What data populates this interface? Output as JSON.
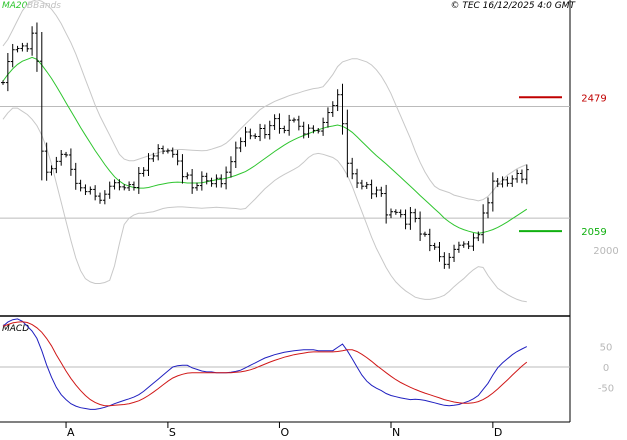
{
  "header": {
    "indicators": [
      "MA20",
      "BBands"
    ],
    "copyright": "© TEC 16/12/2025 4:0 GMT"
  },
  "macd_label": "MACD",
  "colors": {
    "price": "#000000",
    "ma": "#2ec52e",
    "bands": "#c8c8c8",
    "resistance": "#c00000",
    "support": "#10b010",
    "macd": "#2020c0",
    "signal": "#d01818",
    "grid": "#bbbbbb",
    "axis_text": "#b8b8b8"
  },
  "chart_data": [
    {
      "type": "ohlc",
      "price_ticks": [
        {
          "value": 2000,
          "label": "2000"
        }
      ],
      "reference_lines": [
        {
          "value": 2100,
          "label": "",
          "style": "grid"
        },
        {
          "value": 2450,
          "label": "",
          "style": "grid"
        },
        {
          "value": 2479,
          "label": "2479",
          "style": "resistance"
        },
        {
          "value": 2059,
          "label": "2059",
          "style": "support"
        }
      ],
      "x_labels": [
        {
          "index": 13,
          "label": "A"
        },
        {
          "index": 34,
          "label": "S"
        },
        {
          "index": 57,
          "label": "O"
        },
        {
          "index": 80,
          "label": "N"
        },
        {
          "index": 101,
          "label": "D"
        }
      ],
      "close": [
        2525,
        2591,
        2628,
        2632,
        2640,
        2631,
        2680,
        2592,
        2310,
        2244,
        2255,
        2278,
        2300,
        2298,
        2253,
        2209,
        2195,
        2183,
        2190,
        2169,
        2156,
        2175,
        2200,
        2211,
        2198,
        2195,
        2205,
        2196,
        2240,
        2250,
        2286,
        2295,
        2318,
        2310,
        2311,
        2300,
        2279,
        2230,
        2235,
        2195,
        2202,
        2231,
        2217,
        2208,
        2225,
        2208,
        2244,
        2277,
        2320,
        2340,
        2370,
        2358,
        2356,
        2381,
        2362,
        2390,
        2412,
        2381,
        2375,
        2407,
        2408,
        2388,
        2364,
        2382,
        2375,
        2373,
        2400,
        2431,
        2453,
        2487,
        2396,
        2272,
        2239,
        2210,
        2200,
        2205,
        2176,
        2188,
        2177,
        2110,
        2120,
        2118,
        2111,
        2081,
        2117,
        2099,
        2050,
        2049,
        2014,
        2009,
        1979,
        1955,
        1977,
        2002,
        2015,
        2019,
        2012,
        2038,
        2048,
        2116,
        2148,
        2216,
        2207,
        2220,
        2209,
        2223,
        2240,
        2222,
        2252
      ],
      "ma20": [
        2530,
        2550,
        2568,
        2582,
        2592,
        2598,
        2604,
        2598,
        2580,
        2560,
        2538,
        2514,
        2488,
        2462,
        2436,
        2410,
        2384,
        2360,
        2336,
        2312,
        2290,
        2268,
        2248,
        2230,
        2216,
        2206,
        2200,
        2196,
        2194,
        2194,
        2196,
        2200,
        2204,
        2207,
        2210,
        2212,
        2213,
        2212,
        2210,
        2210,
        2210,
        2211,
        2214,
        2217,
        2220,
        2222,
        2225,
        2229,
        2234,
        2240,
        2246,
        2255,
        2265,
        2276,
        2287,
        2298,
        2309,
        2319,
        2329,
        2338,
        2346,
        2353,
        2359,
        2365,
        2371,
        2377,
        2382,
        2386,
        2389,
        2392,
        2388,
        2380,
        2369,
        2355,
        2340,
        2325,
        2310,
        2296,
        2283,
        2270,
        2256,
        2242,
        2228,
        2214,
        2200,
        2186,
        2171,
        2157,
        2143,
        2129,
        2115,
        2100,
        2088,
        2078,
        2070,
        2064,
        2059,
        2055,
        2052,
        2055,
        2059,
        2064,
        2071,
        2079,
        2088,
        2098,
        2108,
        2118,
        2128
      ],
      "bb_upper": [
        2640,
        2660,
        2690,
        2720,
        2750,
        2770,
        2780,
        2785,
        2780,
        2770,
        2755,
        2735,
        2710,
        2680,
        2650,
        2615,
        2575,
        2535,
        2495,
        2455,
        2420,
        2390,
        2360,
        2330,
        2300,
        2285,
        2280,
        2280,
        2285,
        2290,
        2295,
        2300,
        2305,
        2310,
        2312,
        2314,
        2315,
        2315,
        2314,
        2313,
        2312,
        2311,
        2312,
        2316,
        2321,
        2326,
        2335,
        2348,
        2364,
        2380,
        2395,
        2410,
        2425,
        2440,
        2450,
        2458,
        2466,
        2472,
        2478,
        2484,
        2489,
        2493,
        2498,
        2502,
        2506,
        2508,
        2512,
        2530,
        2550,
        2575,
        2590,
        2595,
        2600,
        2600,
        2595,
        2590,
        2580,
        2565,
        2545,
        2520,
        2490,
        2455,
        2420,
        2385,
        2350,
        2310,
        2275,
        2245,
        2220,
        2200,
        2190,
        2185,
        2180,
        2172,
        2168,
        2164,
        2160,
        2158,
        2154,
        2158,
        2168,
        2185,
        2205,
        2220,
        2235,
        2245,
        2255,
        2262,
        2268
      ],
      "bb_lower": [
        2410,
        2430,
        2445,
        2445,
        2435,
        2425,
        2410,
        2390,
        2360,
        2320,
        2270,
        2210,
        2150,
        2090,
        2030,
        1975,
        1935,
        1910,
        1900,
        1895,
        1895,
        1898,
        1905,
        1950,
        2020,
        2080,
        2100,
        2110,
        2115,
        2115,
        2118,
        2120,
        2125,
        2130,
        2133,
        2134,
        2135,
        2135,
        2134,
        2133,
        2132,
        2131,
        2132,
        2133,
        2134,
        2133,
        2132,
        2131,
        2130,
        2128,
        2130,
        2145,
        2160,
        2176,
        2192,
        2205,
        2218,
        2228,
        2237,
        2245,
        2253,
        2262,
        2275,
        2290,
        2300,
        2303,
        2300,
        2295,
        2290,
        2280,
        2260,
        2235,
        2200,
        2160,
        2120,
        2080,
        2040,
        2005,
        1975,
        1945,
        1920,
        1900,
        1885,
        1872,
        1862,
        1852,
        1848,
        1845,
        1845,
        1848,
        1852,
        1858,
        1870,
        1885,
        1898,
        1910,
        1925,
        1938,
        1948,
        1945,
        1920,
        1900,
        1880,
        1870,
        1860,
        1852,
        1845,
        1840,
        1838
      ],
      "xlim": [
        0,
        109
      ],
      "ylim": [
        1793,
        2784
      ]
    },
    {
      "type": "line",
      "label": "MACD",
      "yticks": [
        {
          "value": 50,
          "label": "50"
        },
        {
          "value": 0,
          "label": "0"
        },
        {
          "value": -50,
          "label": "-50"
        }
      ],
      "macd": [
        100,
        110,
        116,
        118,
        112,
        100,
        88,
        70,
        40,
        5,
        -25,
        -50,
        -68,
        -80,
        -90,
        -96,
        -100,
        -102,
        -104,
        -104,
        -102,
        -99,
        -95,
        -90,
        -86,
        -82,
        -78,
        -74,
        -68,
        -60,
        -50,
        -40,
        -30,
        -20,
        -10,
        0,
        3,
        4,
        4,
        -2,
        -6,
        -10,
        -12,
        -12,
        -14,
        -14,
        -14,
        -13,
        -11,
        -8,
        -2,
        4,
        10,
        16,
        22,
        26,
        30,
        33,
        36,
        38,
        40,
        41,
        42,
        42,
        42,
        40,
        40,
        40,
        40,
        48,
        56,
        40,
        20,
        0,
        -20,
        -35,
        -45,
        -52,
        -58,
        -65,
        -70,
        -73,
        -76,
        -78,
        -80,
        -79,
        -80,
        -82,
        -85,
        -88,
        -91,
        -94,
        -95,
        -94,
        -92,
        -88,
        -84,
        -78,
        -70,
        -55,
        -40,
        -20,
        -2,
        10,
        20,
        30,
        38,
        44,
        50
      ],
      "signal": [
        100,
        104,
        108,
        110,
        111,
        109,
        104,
        96,
        85,
        70,
        52,
        30,
        10,
        -10,
        -28,
        -44,
        -58,
        -70,
        -80,
        -87,
        -92,
        -95,
        -95,
        -94,
        -93,
        -92,
        -90,
        -87,
        -83,
        -77,
        -70,
        -62,
        -53,
        -44,
        -35,
        -27,
        -22,
        -18,
        -15,
        -14,
        -14,
        -14,
        -14,
        -14,
        -14,
        -14,
        -14,
        -14,
        -13,
        -12,
        -10,
        -7,
        -3,
        2,
        7,
        12,
        16,
        20,
        24,
        27,
        30,
        32,
        34,
        36,
        37,
        37,
        37,
        37,
        37,
        38,
        40,
        42,
        42,
        38,
        31,
        23,
        14,
        4,
        -5,
        -14,
        -23,
        -31,
        -38,
        -44,
        -50,
        -55,
        -60,
        -64,
        -68,
        -72,
        -76,
        -80,
        -83,
        -86,
        -88,
        -89,
        -89,
        -88,
        -85,
        -80,
        -73,
        -64,
        -54,
        -43,
        -32,
        -20,
        -9,
        2,
        12
      ],
      "xlim": [
        0,
        109
      ],
      "ylim": [
        -135,
        125
      ]
    }
  ]
}
